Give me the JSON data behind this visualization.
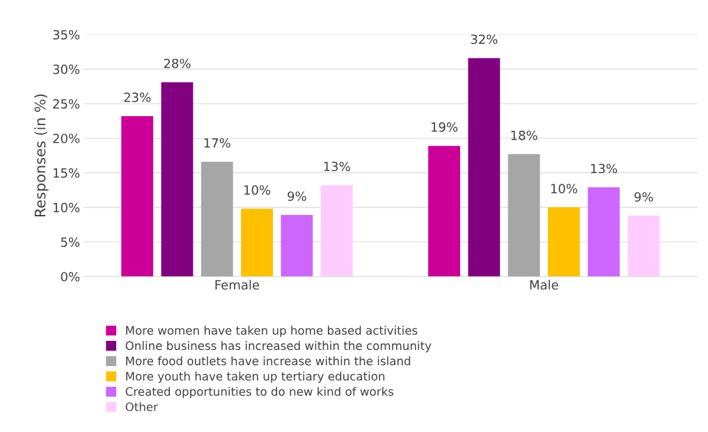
{
  "chart_data": {
    "type": "bar",
    "ylabel": "Responses (in %)",
    "categories": [
      "Female",
      "Male"
    ],
    "series": [
      {
        "name": "More women have taken up home based activities",
        "color": "#cc0099",
        "values": [
          23.2,
          18.9
        ],
        "value_labels": [
          "23%",
          "19%"
        ]
      },
      {
        "name": "Online business has increased within the community",
        "color": "#800080",
        "values": [
          28.1,
          31.6
        ],
        "value_labels": [
          "28%",
          "32%"
        ]
      },
      {
        "name": "More food outlets have increase within the island",
        "color": "#a6a6a6",
        "values": [
          16.6,
          17.7
        ],
        "value_labels": [
          "17%",
          "18%"
        ]
      },
      {
        "name": "More youth have taken up tertiary education",
        "color": "#ffc000",
        "values": [
          9.8,
          10.0
        ],
        "value_labels": [
          "10%",
          "10%"
        ]
      },
      {
        "name": "Created opportunities to do new kind of works",
        "color": "#cc66ff",
        "values": [
          8.9,
          12.9
        ],
        "value_labels": [
          "9%",
          "13%"
        ]
      },
      {
        "name": "Other",
        "color": "#ffccff",
        "values": [
          13.2,
          8.8
        ],
        "value_labels": [
          "13%",
          "9%"
        ]
      }
    ],
    "ylim": [
      0,
      35
    ],
    "yticks": [
      {
        "value": 0,
        "label": "0%"
      },
      {
        "value": 5,
        "label": "5%"
      },
      {
        "value": 10,
        "label": "10%"
      },
      {
        "value": 15,
        "label": "15%"
      },
      {
        "value": 20,
        "label": "20%"
      },
      {
        "value": 25,
        "label": "25%"
      },
      {
        "value": 30,
        "label": "30%"
      },
      {
        "value": 35,
        "label": "35%"
      }
    ],
    "grid": "y",
    "legend": "bottom"
  }
}
